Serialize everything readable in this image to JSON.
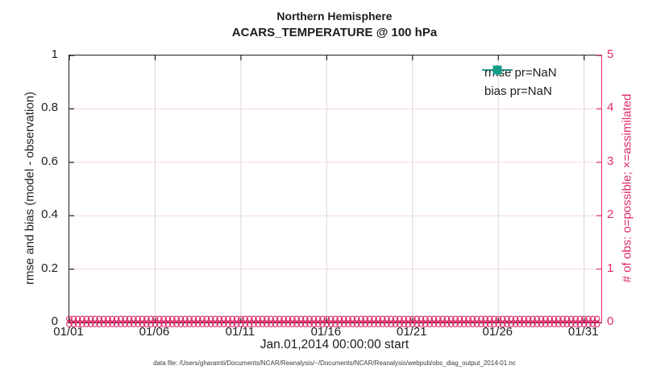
{
  "figure": {
    "title_line1": "Northern Hemisphere",
    "title_line2": "ACARS_TEMPERATURE @ 100 hPa",
    "xlabel": "Jan.01,2014 00:00:00 start",
    "ylabel_left": "rmse and bias (model - observation)",
    "ylabel_right": "# of obs: o=possible; ×=assimilated",
    "footer_note": "data file: /Users/gharamti/Documents/NCAR/Reanalysis/~/Documents/NCAR/Reanalysis/webpub/obs_diag_output_2014-01.nc"
  },
  "colors": {
    "ink": "#1d1d1d",
    "accent_pink": "#de2a6b",
    "teal": "#169c8a",
    "grid_gray": "#d8d8d8",
    "grid_pink": "#f6d7e3"
  },
  "legend": {
    "items": [
      {
        "label": "rmse pr=NaN",
        "marker": "circle",
        "color": "#1d1d1d"
      },
      {
        "label": "bias pr=NaN",
        "marker": "square",
        "color": "#169c8a"
      }
    ]
  },
  "chart_data": {
    "type": "line",
    "title": "Northern Hemisphere — ACARS_TEMPERATURE @ 100 hPa",
    "xlabel": "Jan.01,2014 00:00:00 start",
    "ylabel_left": "rmse and bias (model - observation)",
    "ylabel_right": "# of obs: o=possible; ×=assimilated",
    "grid": true,
    "legend_position": "top-right-inside",
    "xlim_days": [
      1,
      32
    ],
    "ylim_left": [
      0,
      1
    ],
    "ylim_right": [
      0,
      5
    ],
    "x_ticks": [
      {
        "day": 1,
        "label": "01/01"
      },
      {
        "day": 6,
        "label": "01/06"
      },
      {
        "day": 11,
        "label": "01/11"
      },
      {
        "day": 16,
        "label": "01/16"
      },
      {
        "day": 21,
        "label": "01/21"
      },
      {
        "day": 26,
        "label": "01/26"
      },
      {
        "day": 31,
        "label": "01/31"
      }
    ],
    "y_ticks_left": [
      {
        "v": 1,
        "label": "1"
      },
      {
        "v": 0.8,
        "label": "0.8"
      },
      {
        "v": 0.6,
        "label": "0.6"
      },
      {
        "v": 0.4,
        "label": "0.4"
      },
      {
        "v": 0.2,
        "label": "0.2"
      },
      {
        "v": 0,
        "label": "0"
      }
    ],
    "y_ticks_right": [
      {
        "v": 5,
        "label": "5"
      },
      {
        "v": 4,
        "label": "4"
      },
      {
        "v": 3,
        "label": "3"
      },
      {
        "v": 2,
        "label": "2"
      },
      {
        "v": 1,
        "label": "1"
      },
      {
        "v": 0,
        "label": "0"
      }
    ],
    "x_days": [
      1,
      2,
      3,
      4,
      5,
      6,
      7,
      8,
      9,
      10,
      11,
      12,
      13,
      14,
      15,
      16,
      17,
      18,
      19,
      20,
      21,
      22,
      23,
      24,
      25,
      26,
      27,
      28,
      29,
      30,
      31
    ],
    "series": [
      {
        "name": "rmse pr=NaN",
        "axis": "left",
        "marker": "circle",
        "color": "#1d1d1d",
        "values": [
          null,
          null,
          null,
          null,
          null,
          null,
          null,
          null,
          null,
          null,
          null,
          null,
          null,
          null,
          null,
          null,
          null,
          null,
          null,
          null,
          null,
          null,
          null,
          null,
          null,
          null,
          null,
          null,
          null,
          null,
          null
        ]
      },
      {
        "name": "bias pr=NaN",
        "axis": "left",
        "marker": "square",
        "color": "#169c8a",
        "values": [
          null,
          null,
          null,
          null,
          null,
          null,
          null,
          null,
          null,
          null,
          null,
          null,
          null,
          null,
          null,
          null,
          null,
          null,
          null,
          null,
          null,
          null,
          null,
          null,
          null,
          null,
          null,
          null,
          null,
          null,
          null
        ]
      },
      {
        "name": "# of possible obs (o)",
        "axis": "right",
        "marker": "o",
        "color": "#de2a6b",
        "values": [
          0,
          0,
          0,
          0,
          0,
          0,
          0,
          0,
          0,
          0,
          0,
          0,
          0,
          0,
          0,
          0,
          0,
          0,
          0,
          0,
          0,
          0,
          0,
          0,
          0,
          0,
          0,
          0,
          0,
          0,
          0
        ]
      },
      {
        "name": "# of assimilated obs (×)",
        "axis": "right",
        "marker": "x",
        "color": "#de2a6b",
        "values": [
          0,
          0,
          0,
          0,
          0,
          0,
          0,
          0,
          0,
          0,
          0,
          0,
          0,
          0,
          0,
          0,
          0,
          0,
          0,
          0,
          0,
          0,
          0,
          0,
          0,
          0,
          0,
          0,
          0,
          0,
          0
        ]
      }
    ]
  }
}
